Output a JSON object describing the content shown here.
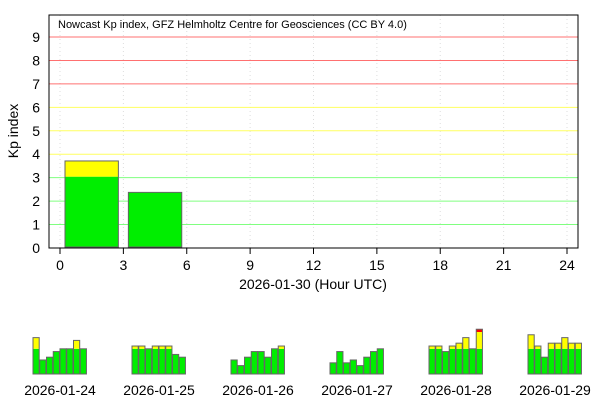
{
  "colors": {
    "quiet": "#00ee00",
    "active": "#ffff00",
    "storm": "#ff0000",
    "grid_low": "#80ff80",
    "grid_mid": "#ffff60",
    "grid_high": "#ff7070"
  },
  "chart_data": [
    {
      "type": "bar",
      "title": "Nowcast Kp index, GFZ Helmholtz Centre for Geosciences (CC BY 4.0)",
      "xlabel": "2026-01-30 (Hour UTC)",
      "ylabel": "Kp index",
      "xlim": [
        0,
        24
      ],
      "ylim": [
        0,
        10
      ],
      "xticks": [
        "0",
        "3",
        "6",
        "9",
        "12",
        "15",
        "18",
        "21",
        "24"
      ],
      "yticks": [
        "0",
        "1",
        "2",
        "3",
        "4",
        "5",
        "6",
        "7",
        "8",
        "9"
      ],
      "grid": true,
      "bars": [
        {
          "start_hour": 0,
          "end_hour": 3,
          "value": 3.67
        },
        {
          "start_hour": 3,
          "end_hour": 6,
          "value": 2.33
        }
      ]
    },
    {
      "type": "bar",
      "days": [
        {
          "label": "2026-01-24",
          "values": [
            4.33,
            1.67,
            2.0,
            2.67,
            3.0,
            3.0,
            4.0,
            3.0
          ]
        },
        {
          "label": "2026-01-25",
          "values": [
            3.33,
            3.33,
            3.0,
            3.33,
            3.33,
            3.33,
            2.33,
            2.0
          ]
        },
        {
          "label": "2026-01-26",
          "values": [
            1.67,
            1.0,
            2.0,
            2.67,
            2.67,
            2.0,
            3.0,
            3.33
          ]
        },
        {
          "label": "2026-01-27",
          "values": [
            1.33,
            2.67,
            1.33,
            1.67,
            1.0,
            2.0,
            2.67,
            3.0
          ]
        },
        {
          "label": "2026-01-28",
          "values": [
            3.33,
            3.33,
            2.67,
            3.33,
            3.67,
            4.33,
            3.0,
            5.33
          ]
        },
        {
          "label": "2026-01-29",
          "values": [
            4.67,
            3.33,
            2.0,
            3.67,
            3.67,
            4.33,
            3.67,
            3.67
          ]
        }
      ]
    }
  ]
}
